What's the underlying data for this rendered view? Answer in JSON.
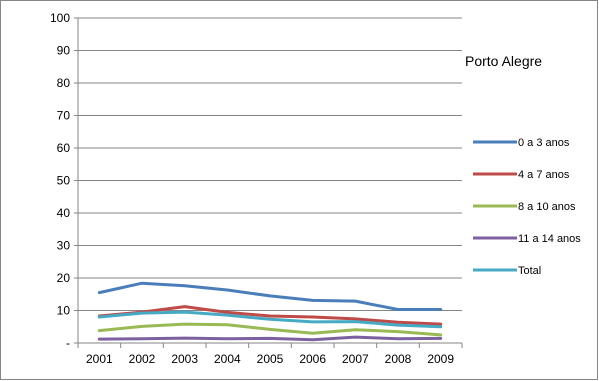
{
  "chart_data": {
    "type": "line",
    "title": "Porto Alegre",
    "xlabel": "",
    "ylabel": "",
    "x": [
      "2001",
      "2002",
      "2003",
      "2004",
      "2005",
      "2006",
      "2007",
      "2008",
      "2009"
    ],
    "ylim": [
      0,
      100
    ],
    "yticks": [
      {
        "value": 0,
        "label": "-"
      },
      {
        "value": 10,
        "label": "10"
      },
      {
        "value": 20,
        "label": "20"
      },
      {
        "value": 30,
        "label": "30"
      },
      {
        "value": 40,
        "label": "40"
      },
      {
        "value": 50,
        "label": "50"
      },
      {
        "value": 60,
        "label": "60"
      },
      {
        "value": 70,
        "label": "70"
      },
      {
        "value": 80,
        "label": "80"
      },
      {
        "value": 90,
        "label": "90"
      },
      {
        "value": 100,
        "label": "100"
      }
    ],
    "legend_position": "right",
    "grid": "horizontal",
    "series": [
      {
        "name": "0 a 3 anos",
        "color": "#4A7EBB",
        "values": [
          15.5,
          18.4,
          17.6,
          16.3,
          14.5,
          13.1,
          12.9,
          10.3,
          10.3
        ]
      },
      {
        "name": "4 a 7 anos",
        "color": "#BE4B48",
        "values": [
          8.3,
          9.5,
          11.2,
          9.4,
          8.3,
          8.0,
          7.4,
          6.4,
          5.8
        ]
      },
      {
        "name": "8 a 10 anos",
        "color": "#98B954",
        "values": [
          3.8,
          5.1,
          5.8,
          5.6,
          4.2,
          3.0,
          4.1,
          3.5,
          2.5
        ]
      },
      {
        "name": "11 a 14 anos",
        "color": "#7D60A0",
        "values": [
          1.2,
          1.3,
          1.5,
          1.3,
          1.4,
          1.0,
          1.8,
          1.3,
          1.4
        ]
      },
      {
        "name": "Total",
        "color": "#46AAC5",
        "values": [
          8.0,
          9.2,
          9.5,
          8.6,
          7.3,
          6.5,
          6.6,
          5.5,
          5.0
        ]
      }
    ]
  }
}
